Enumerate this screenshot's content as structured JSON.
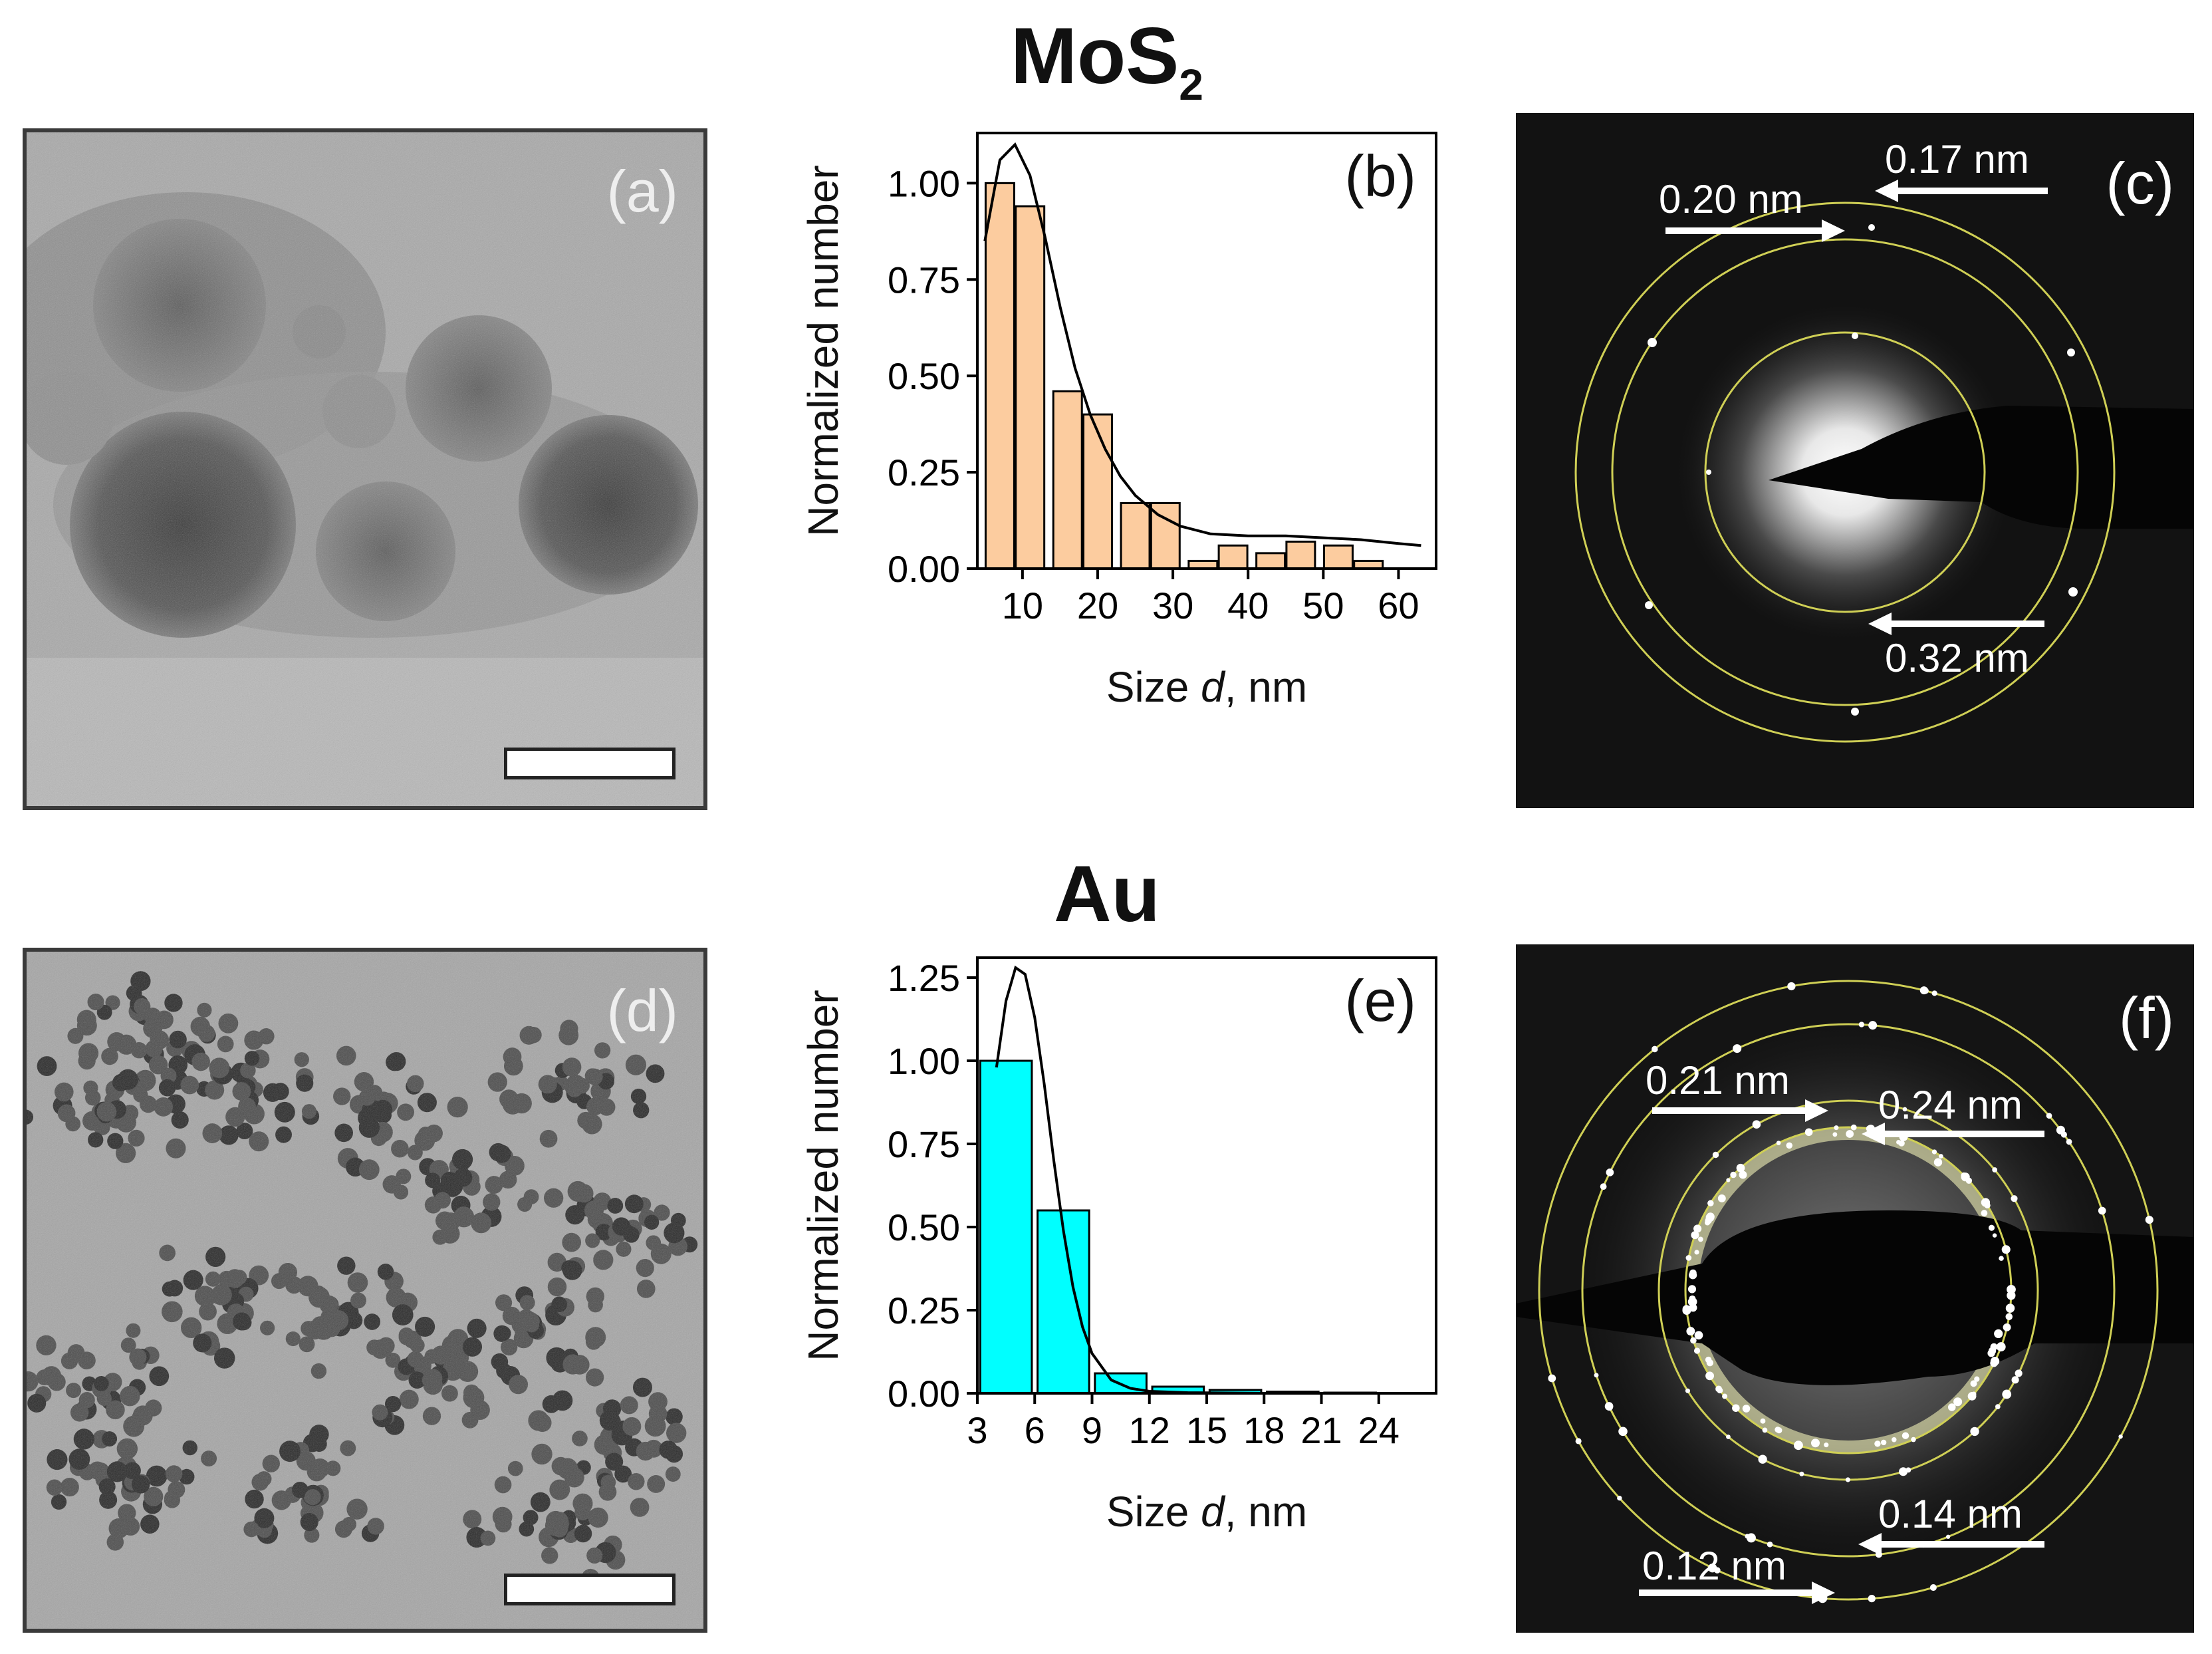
{
  "rows": [
    {
      "title": "MoS",
      "title_sub": "2"
    },
    {
      "title": "Au",
      "title_sub": ""
    }
  ],
  "panels": {
    "a": {
      "label": "(a)",
      "type": "TEM micrograph"
    },
    "c": {
      "label": "(c)",
      "type": "SAED pattern",
      "annotations": [
        "0.17 nm",
        "0.20 nm",
        "0.32 nm"
      ]
    },
    "d": {
      "label": "(d)",
      "type": "TEM micrograph"
    },
    "f": {
      "label": "(f)",
      "type": "SAED pattern",
      "annotations": [
        "0.21 nm",
        "0.24 nm",
        "0.14 nm",
        "0.12 nm"
      ]
    }
  },
  "colors": {
    "mos2_bar": "#fccc9f",
    "au_bar": "#00ffff",
    "fit": "#000000",
    "ring": "#d4d45a"
  },
  "chart_data": [
    {
      "id": "b",
      "label": "(b)",
      "type": "bar",
      "xlabel": "Size d, nm",
      "ylabel": "Normalized number",
      "xlim": [
        4,
        65
      ],
      "ylim": [
        0,
        1.13
      ],
      "xticks": [
        10,
        20,
        30,
        40,
        50,
        60
      ],
      "yticks": [
        0.0,
        0.25,
        0.5,
        0.75,
        1.0
      ],
      "bin_width": 3.8,
      "bars": [
        {
          "x": 7,
          "value": 1.0
        },
        {
          "x": 11,
          "value": 0.94
        },
        {
          "x": 16,
          "value": 0.46
        },
        {
          "x": 20,
          "value": 0.4
        },
        {
          "x": 25,
          "value": 0.17
        },
        {
          "x": 29,
          "value": 0.17
        },
        {
          "x": 34,
          "value": 0.02
        },
        {
          "x": 38,
          "value": 0.06
        },
        {
          "x": 43,
          "value": 0.04
        },
        {
          "x": 47,
          "value": 0.07
        },
        {
          "x": 52,
          "value": 0.06
        },
        {
          "x": 56,
          "value": 0.02
        }
      ],
      "fit": {
        "x": [
          5,
          7,
          9,
          11,
          13,
          15,
          17,
          19,
          21,
          23,
          25,
          28,
          31,
          35,
          40,
          45,
          50,
          55,
          60,
          63
        ],
        "y": [
          0.85,
          1.06,
          1.1,
          1.02,
          0.86,
          0.68,
          0.52,
          0.4,
          0.31,
          0.24,
          0.19,
          0.14,
          0.11,
          0.09,
          0.085,
          0.085,
          0.08,
          0.075,
          0.065,
          0.06
        ]
      }
    },
    {
      "id": "e",
      "label": "(e)",
      "type": "bar",
      "xlabel": "Size d, nm",
      "ylabel": "Normalized number",
      "xlim": [
        3,
        27
      ],
      "ylim": [
        0,
        1.31
      ],
      "xticks": [
        3,
        6,
        9,
        12,
        15,
        18,
        21,
        24
      ],
      "yticks": [
        0.0,
        0.25,
        0.5,
        0.75,
        1.0,
        1.25
      ],
      "bin_width": 2.7,
      "bars": [
        {
          "x": 4.5,
          "value": 1.0
        },
        {
          "x": 7.5,
          "value": 0.55
        },
        {
          "x": 10.5,
          "value": 0.06
        },
        {
          "x": 13.5,
          "value": 0.02
        },
        {
          "x": 16.5,
          "value": 0.01
        },
        {
          "x": 19.5,
          "value": 0.005
        },
        {
          "x": 22.5,
          "value": 0.002
        },
        {
          "x": 25.5,
          "value": 0.001
        }
      ],
      "fit": {
        "x": [
          4,
          4.5,
          5,
          5.5,
          6,
          6.5,
          7,
          7.5,
          8,
          8.5,
          9,
          10,
          11,
          12,
          14,
          16,
          18,
          20,
          23,
          26
        ],
        "y": [
          0.98,
          1.18,
          1.28,
          1.26,
          1.13,
          0.93,
          0.7,
          0.49,
          0.32,
          0.2,
          0.12,
          0.04,
          0.015,
          0.006,
          0.002,
          0.001,
          0.0,
          0.0,
          0.0,
          0.0
        ]
      }
    }
  ]
}
